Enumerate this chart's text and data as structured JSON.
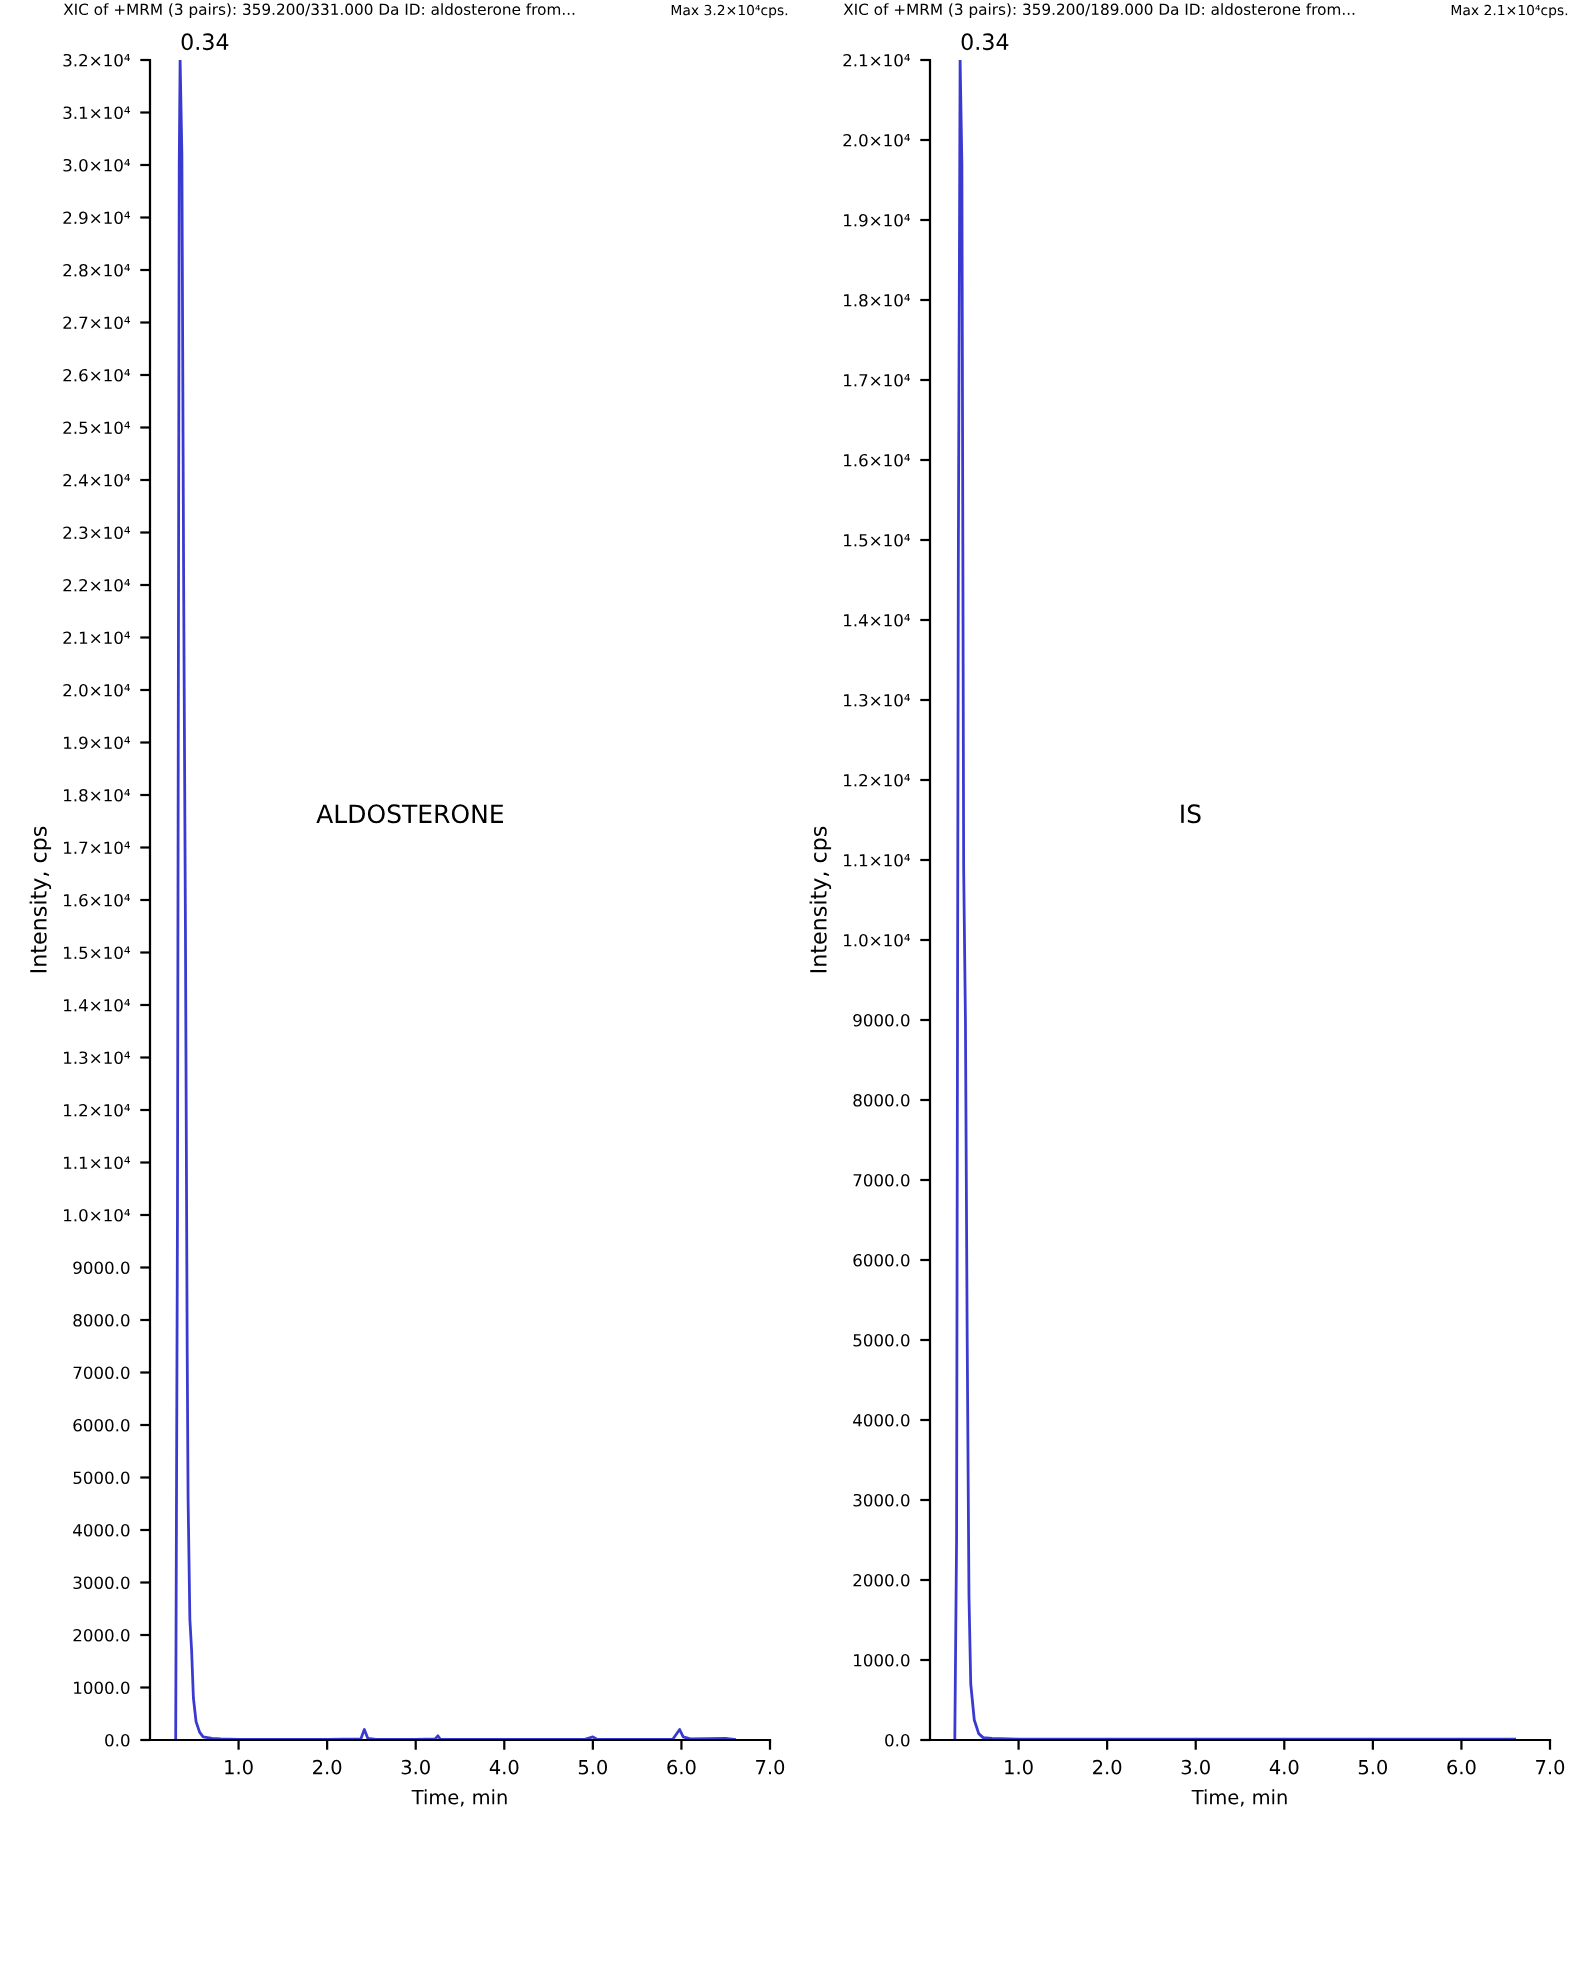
{
  "chart_data": [
    {
      "type": "line",
      "title": "XIC of +MRM (3 pairs): 359.200/331.000 Da ID: aldosterone from...",
      "subtitle": "Max 3.2×10⁴cps.",
      "xlabel": "Time, min",
      "ylabel": "Intensity, cps",
      "series": [
        {
          "color": "#3a3ad0",
          "x": [
            0.29,
            0.31,
            0.33,
            0.34,
            0.36,
            0.38,
            0.4,
            0.42,
            0.43,
            0.45,
            0.47,
            0.49,
            0.52,
            0.56,
            0.6,
            0.7,
            0.8,
            1.0,
            1.5,
            2.0,
            2.38,
            2.42,
            2.46,
            2.55,
            3.0,
            3.22,
            3.25,
            3.28,
            4.0,
            4.9,
            5.0,
            5.05,
            5.9,
            5.98,
            6.02,
            6.1,
            6.5,
            6.6
          ],
          "values": [
            0,
            10000,
            30000,
            32000,
            30200,
            22000,
            15500,
            7400,
            4600,
            2300,
            1700,
            800,
            350,
            150,
            60,
            30,
            20,
            10,
            10,
            10,
            20,
            200,
            30,
            10,
            10,
            20,
            80,
            10,
            10,
            10,
            60,
            10,
            10,
            200,
            60,
            20,
            30,
            10
          ]
        }
      ],
      "xlim": [
        0,
        7.0
      ],
      "ylim": [
        0,
        32000
      ],
      "xticks": [
        {
          "value": 1,
          "label": "1.0"
        },
        {
          "value": 2,
          "label": "2.0"
        },
        {
          "value": 3,
          "label": "3.0"
        },
        {
          "value": 4,
          "label": "4.0"
        },
        {
          "value": 5,
          "label": "5.0"
        },
        {
          "value": 6,
          "label": "6.0"
        },
        {
          "value": 7,
          "label": "7.0"
        }
      ],
      "yticks": [
        {
          "value": 0,
          "label": "0.0"
        },
        {
          "value": 1000,
          "label": "1000.0"
        },
        {
          "value": 2000,
          "label": "2000.0"
        },
        {
          "value": 3000,
          "label": "3000.0"
        },
        {
          "value": 4000,
          "label": "4000.0"
        },
        {
          "value": 5000,
          "label": "5000.0"
        },
        {
          "value": 6000,
          "label": "6000.0"
        },
        {
          "value": 7000,
          "label": "7000.0"
        },
        {
          "value": 8000,
          "label": "8000.0"
        },
        {
          "value": 9000,
          "label": "9000.0"
        },
        {
          "value": 10000,
          "label": "1.0×10⁴"
        },
        {
          "value": 11000,
          "label": "1.1×10⁴"
        },
        {
          "value": 12000,
          "label": "1.2×10⁴"
        },
        {
          "value": 13000,
          "label": "1.3×10⁴"
        },
        {
          "value": 14000,
          "label": "1.4×10⁴"
        },
        {
          "value": 15000,
          "label": "1.5×10⁴"
        },
        {
          "value": 16000,
          "label": "1.6×10⁴"
        },
        {
          "value": 17000,
          "label": "1.7×10⁴"
        },
        {
          "value": 18000,
          "label": "1.8×10⁴"
        },
        {
          "value": 19000,
          "label": "1.9×10⁴"
        },
        {
          "value": 20000,
          "label": "2.0×10⁴"
        },
        {
          "value": 21000,
          "label": "2.1×10⁴"
        },
        {
          "value": 22000,
          "label": "2.2×10⁴"
        },
        {
          "value": 23000,
          "label": "2.3×10⁴"
        },
        {
          "value": 24000,
          "label": "2.4×10⁴"
        },
        {
          "value": 25000,
          "label": "2.5×10⁴"
        },
        {
          "value": 26000,
          "label": "2.6×10⁴"
        },
        {
          "value": 27000,
          "label": "2.7×10⁴"
        },
        {
          "value": 28000,
          "label": "2.8×10⁴"
        },
        {
          "value": 29000,
          "label": "2.9×10⁴"
        },
        {
          "value": 30000,
          "label": "3.0×10⁴"
        },
        {
          "value": 31000,
          "label": "3.1×10⁴"
        },
        {
          "value": 32000,
          "label": "3.2×10⁴"
        }
      ],
      "annotations": [
        {
          "text": "0.34",
          "x": 0.34,
          "y": 32000
        },
        "ALDOSTERONE"
      ],
      "grid": false,
      "legend": false
    },
    {
      "type": "line",
      "title": "XIC of +MRM (3 pairs): 359.200/189.000 Da ID: aldosterone from...",
      "subtitle": "Max 2.1×10⁴cps.",
      "xlabel": "Time, min",
      "ylabel": "Intensity, cps",
      "series": [
        {
          "color": "#3a3ad0",
          "x": [
            0.28,
            0.3,
            0.32,
            0.34,
            0.36,
            0.38,
            0.4,
            0.42,
            0.44,
            0.46,
            0.5,
            0.55,
            0.6,
            0.7,
            1.0,
            2.0,
            3.0,
            4.0,
            5.0,
            6.0,
            6.6
          ],
          "values": [
            0,
            2500,
            14800,
            21000,
            19700,
            10900,
            9000,
            5000,
            1800,
            700,
            250,
            80,
            30,
            20,
            10,
            10,
            10,
            10,
            10,
            10,
            10
          ]
        }
      ],
      "xlim": [
        0,
        7.0
      ],
      "ylim": [
        0,
        21000
      ],
      "xticks": [
        {
          "value": 1,
          "label": "1.0"
        },
        {
          "value": 2,
          "label": "2.0"
        },
        {
          "value": 3,
          "label": "3.0"
        },
        {
          "value": 4,
          "label": "4.0"
        },
        {
          "value": 5,
          "label": "5.0"
        },
        {
          "value": 6,
          "label": "6.0"
        },
        {
          "value": 7,
          "label": "7.0"
        }
      ],
      "yticks": [
        {
          "value": 0,
          "label": "0.0"
        },
        {
          "value": 1000,
          "label": "1000.0"
        },
        {
          "value": 2000,
          "label": "2000.0"
        },
        {
          "value": 3000,
          "label": "3000.0"
        },
        {
          "value": 4000,
          "label": "4000.0"
        },
        {
          "value": 5000,
          "label": "5000.0"
        },
        {
          "value": 6000,
          "label": "6000.0"
        },
        {
          "value": 7000,
          "label": "7000.0"
        },
        {
          "value": 8000,
          "label": "8000.0"
        },
        {
          "value": 9000,
          "label": "9000.0"
        },
        {
          "value": 10000,
          "label": "1.0×10⁴"
        },
        {
          "value": 11000,
          "label": "1.1×10⁴"
        },
        {
          "value": 12000,
          "label": "1.2×10⁴"
        },
        {
          "value": 13000,
          "label": "1.3×10⁴"
        },
        {
          "value": 14000,
          "label": "1.4×10⁴"
        },
        {
          "value": 15000,
          "label": "1.5×10⁴"
        },
        {
          "value": 16000,
          "label": "1.6×10⁴"
        },
        {
          "value": 17000,
          "label": "1.7×10⁴"
        },
        {
          "value": 18000,
          "label": "1.8×10⁴"
        },
        {
          "value": 19000,
          "label": "1.9×10⁴"
        },
        {
          "value": 20000,
          "label": "2.0×10⁴"
        },
        {
          "value": 21000,
          "label": "2.1×10⁴"
        }
      ],
      "annotations": [
        {
          "text": "0.34",
          "x": 0.34,
          "y": 21000
        },
        "IS"
      ],
      "grid": false,
      "legend": false
    }
  ]
}
